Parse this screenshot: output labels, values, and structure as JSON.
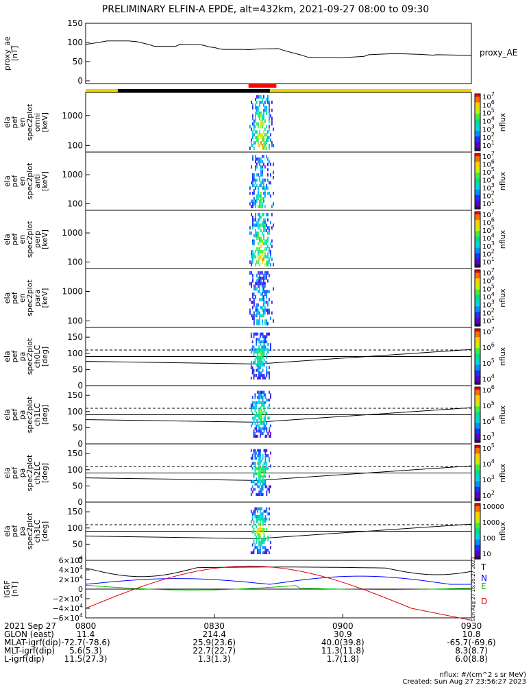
{
  "title": "PRELIMINARY ELFIN-A EPDE, alt=432km, 2021-09-27 08:00 to 09:30",
  "chart_data": {
    "type": "multi-panel time series",
    "x_range_minutes_after_0800": [
      0,
      90
    ],
    "x_tick_labels": [
      "0800",
      "0830",
      "0900",
      "0930"
    ],
    "panels": [
      {
        "id": "proxy_ae",
        "type": "line",
        "ylabel": [
          "proxy_ae",
          "[nT]"
        ],
        "series_label": "proxy_AE",
        "ylim": [
          0,
          150
        ],
        "yticks": [
          "150",
          "100",
          "50",
          "0"
        ],
        "points": [
          [
            0,
            95
          ],
          [
            3,
            100
          ],
          [
            5,
            104
          ],
          [
            10,
            104
          ],
          [
            12,
            102
          ],
          [
            15,
            94
          ],
          [
            16,
            90
          ],
          [
            21,
            90
          ],
          [
            22,
            95
          ],
          [
            27,
            94
          ],
          [
            28,
            91
          ],
          [
            29,
            88
          ],
          [
            30,
            87
          ],
          [
            31,
            84
          ],
          [
            32,
            82
          ],
          [
            37,
            82
          ],
          [
            38,
            81
          ],
          [
            40,
            83
          ],
          [
            45,
            84
          ],
          [
            46,
            80
          ],
          [
            48,
            74
          ],
          [
            50,
            68
          ],
          [
            52,
            61
          ],
          [
            60,
            60
          ],
          [
            61,
            61
          ],
          [
            65,
            64
          ],
          [
            66,
            68
          ],
          [
            72,
            71
          ],
          [
            75,
            70
          ],
          [
            78,
            69
          ],
          [
            81,
            67
          ],
          [
            82,
            68
          ],
          [
            87,
            67
          ],
          [
            90,
            66
          ]
        ]
      },
      {
        "id": "en_omni",
        "type": "heatmap",
        "ylabel": [
          "ela",
          "pef",
          "en",
          "spec2plot",
          "omni",
          "[keV]"
        ],
        "yscale": "log",
        "ylim": [
          60,
          6000
        ],
        "yticks": [
          "1000",
          "100"
        ],
        "colorbar": {
          "label": "nflux",
          "ticks": [
            "10^7",
            "10^6",
            "10^5",
            "10^4",
            "10^3",
            "10^2",
            "10^1"
          ]
        }
      },
      {
        "id": "en_anti",
        "type": "heatmap",
        "ylabel": [
          "ela",
          "pef",
          "en",
          "spec2plot",
          "anti",
          "[keV]"
        ],
        "yscale": "log",
        "ylim": [
          60,
          6000
        ],
        "yticks": [
          "1000",
          "100"
        ],
        "colorbar": {
          "label": "nflux",
          "ticks": [
            "10^7",
            "10^6",
            "10^5",
            "10^4",
            "10^3",
            "10^2",
            "10^1"
          ]
        }
      },
      {
        "id": "en_perp",
        "type": "heatmap",
        "ylabel": [
          "ela",
          "pef",
          "en",
          "spec2plot",
          "perp",
          "[keV]"
        ],
        "yscale": "log",
        "ylim": [
          60,
          6000
        ],
        "yticks": [
          "1000",
          "100"
        ],
        "colorbar": {
          "label": "nflux",
          "ticks": [
            "10^7",
            "10^6",
            "10^5",
            "10^4",
            "10^3",
            "10^2",
            "10^1"
          ]
        }
      },
      {
        "id": "en_para",
        "type": "heatmap",
        "ylabel": [
          "ela",
          "pef",
          "en",
          "spec2plot",
          "para",
          "[keV]"
        ],
        "yscale": "log",
        "ylim": [
          60,
          6000
        ],
        "yticks": [
          "1000",
          "100"
        ],
        "colorbar": {
          "label": "nflux",
          "ticks": [
            "10^7",
            "10^6",
            "10^5",
            "10^4",
            "10^3",
            "10^2",
            "10^1"
          ]
        }
      },
      {
        "id": "pa_ch0",
        "type": "heatmap",
        "ylabel": [
          "ela",
          "pef",
          "pa",
          "spec2plot",
          "ch0LC",
          "[deg]"
        ],
        "ylim": [
          0,
          180
        ],
        "yticks": [
          "150",
          "100",
          "50",
          "0"
        ],
        "colorbar": {
          "label": "nflux",
          "ticks": [
            "10^7",
            "10^6",
            "10^5",
            "10^4"
          ]
        }
      },
      {
        "id": "pa_ch1",
        "type": "heatmap",
        "ylabel": [
          "ela",
          "pef",
          "pa",
          "spec2plot",
          "ch1LC",
          "[deg]"
        ],
        "ylim": [
          0,
          180
        ],
        "yticks": [
          "150",
          "100",
          "50",
          "0"
        ],
        "colorbar": {
          "label": "nflux",
          "ticks": [
            "10^6",
            "10^5",
            "10^4",
            "10^3"
          ]
        }
      },
      {
        "id": "pa_ch2",
        "type": "heatmap",
        "ylabel": [
          "ela",
          "pef",
          "pa",
          "spec2plot",
          "ch2LC",
          "[deg]"
        ],
        "ylim": [
          0,
          180
        ],
        "yticks": [
          "150",
          "100",
          "50",
          "0"
        ],
        "colorbar": {
          "label": "nflux",
          "ticks": [
            "10^5",
            "10^4",
            "10^3",
            "10^2"
          ]
        }
      },
      {
        "id": "pa_ch3",
        "type": "heatmap",
        "ylabel": [
          "ela",
          "pef",
          "pa",
          "spec2plot",
          "ch3LC",
          "[deg]"
        ],
        "ylim": [
          0,
          180
        ],
        "yticks": [
          "150",
          "100",
          "50",
          "0"
        ],
        "colorbar": {
          "label": "nflux",
          "ticks": [
            "10000",
            "1000",
            "100",
            "10"
          ]
        }
      },
      {
        "id": "igrf",
        "type": "line",
        "ylabel": [
          "IGRF",
          "[nT]"
        ],
        "ylim": [
          -60000,
          60000
        ],
        "yticks": [
          "6×10^4",
          "4×10^4",
          "2×10^4",
          "0",
          "−2×10^4",
          "−4×10^4",
          "−6×10^4"
        ],
        "legend": [
          {
            "label": "T",
            "color": "#000000"
          },
          {
            "label": "N",
            "color": "#0000ff"
          },
          {
            "label": "E",
            "color": "#00c000"
          },
          {
            "label": "D",
            "color": "#e00000"
          }
        ]
      }
    ]
  },
  "footer": {
    "rows": [
      {
        "label": "2021 Sep 27",
        "values": [
          "0800",
          "0830",
          "0900",
          "0930"
        ]
      },
      {
        "label": "GLON (east)",
        "values": [
          "11.4",
          "214.4",
          "30.9",
          "10.8"
        ]
      },
      {
        "label": "MLAT-igrf(dip)",
        "values": [
          "-72.7(-78.6)",
          "25.9(23.6)",
          "40.0(39.8)",
          "-65.7(-69.6)"
        ]
      },
      {
        "label": "MLT-igrf(dip)",
        "values": [
          "5.6(5.3)",
          "22.7(22.7)",
          "11.3(11.8)",
          "8.3(8.7)"
        ]
      },
      {
        "label": "L-igrf(dip)",
        "values": [
          "11.5(27.3)",
          "1.3(1.3)",
          "1.7(1.8)",
          "6.0(8.8)"
        ]
      }
    ],
    "note_units": "nflux: #/(cm^2 s sr MeV)",
    "note_created": "Created: Sun Aug 27 23:56:27 2023",
    "side_stamp": "Sun Aug 27 16:35:27 2023"
  }
}
